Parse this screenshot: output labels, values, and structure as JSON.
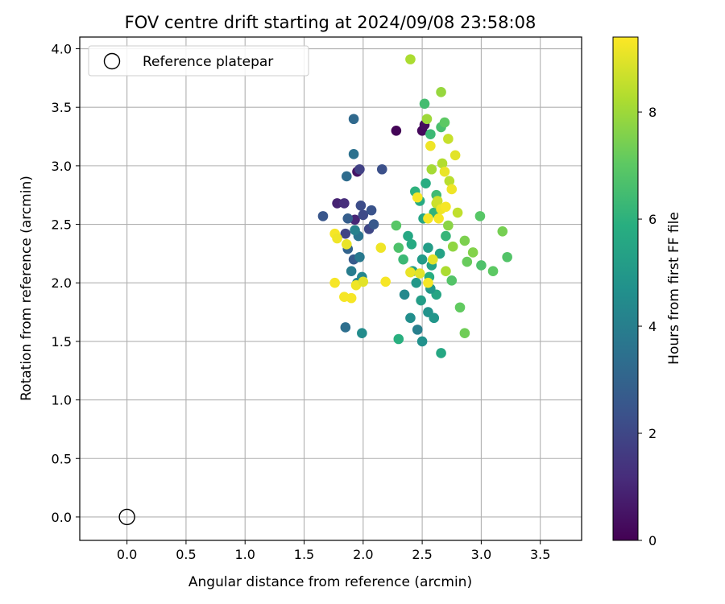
{
  "chart_data": {
    "type": "scatter",
    "title": "FOV centre drift starting at 2024/09/08 23:58:08",
    "xlabel": "Angular distance from reference (arcmin)",
    "ylabel": "Rotation from reference (arcmin)",
    "xlim": [
      -0.4,
      3.85
    ],
    "ylim": [
      -0.2,
      4.1
    ],
    "x_ticks": [
      "0.0",
      "0.5",
      "1.0",
      "1.5",
      "2.0",
      "2.5",
      "3.0",
      "3.5"
    ],
    "y_ticks": [
      "0.0",
      "0.5",
      "1.0",
      "1.5",
      "2.0",
      "2.5",
      "3.0",
      "3.5",
      "4.0"
    ],
    "grid": true,
    "legend": {
      "placement": "top-left",
      "entries": [
        "Reference platepar"
      ]
    },
    "colorbar": {
      "label": "Hours from first FF file",
      "min": 0,
      "max": 9.4,
      "ticks": [
        "0",
        "2",
        "4",
        "6",
        "8"
      ],
      "colormap": "viridis"
    },
    "reference_point": {
      "x": 0.0,
      "y": 0.0
    },
    "points": [
      {
        "x": 2.28,
        "y": 3.3,
        "h": 0.1
      },
      {
        "x": 2.5,
        "y": 3.3,
        "h": 0.2
      },
      {
        "x": 2.52,
        "y": 3.35,
        "h": 0.3
      },
      {
        "x": 1.95,
        "y": 2.95,
        "h": 0.5
      },
      {
        "x": 1.78,
        "y": 2.68,
        "h": 0.9
      },
      {
        "x": 1.84,
        "y": 2.68,
        "h": 1.2
      },
      {
        "x": 1.93,
        "y": 2.54,
        "h": 1.0
      },
      {
        "x": 1.97,
        "y": 2.97,
        "h": 1.8
      },
      {
        "x": 2.16,
        "y": 2.97,
        "h": 2.3
      },
      {
        "x": 1.66,
        "y": 2.57,
        "h": 2.5
      },
      {
        "x": 1.87,
        "y": 2.55,
        "h": 2.8
      },
      {
        "x": 1.98,
        "y": 2.66,
        "h": 2.2
      },
      {
        "x": 2.0,
        "y": 2.58,
        "h": 2.1
      },
      {
        "x": 2.07,
        "y": 2.62,
        "h": 2.4
      },
      {
        "x": 2.05,
        "y": 2.46,
        "h": 2.0
      },
      {
        "x": 1.85,
        "y": 2.42,
        "h": 1.9
      },
      {
        "x": 2.09,
        "y": 2.5,
        "h": 2.6
      },
      {
        "x": 1.92,
        "y": 2.2,
        "h": 2.7
      },
      {
        "x": 1.87,
        "y": 2.29,
        "h": 3.0
      },
      {
        "x": 1.92,
        "y": 3.4,
        "h": 3.2
      },
      {
        "x": 1.92,
        "y": 3.1,
        "h": 3.5
      },
      {
        "x": 1.86,
        "y": 2.91,
        "h": 3.3
      },
      {
        "x": 1.85,
        "y": 1.62,
        "h": 3.4
      },
      {
        "x": 1.97,
        "y": 2.22,
        "h": 3.8
      },
      {
        "x": 1.9,
        "y": 2.1,
        "h": 3.9
      },
      {
        "x": 1.96,
        "y": 2.4,
        "h": 3.6
      },
      {
        "x": 1.93,
        "y": 2.45,
        "h": 4.1
      },
      {
        "x": 1.99,
        "y": 2.05,
        "h": 4.3
      },
      {
        "x": 1.99,
        "y": 1.57,
        "h": 4.5
      },
      {
        "x": 1.95,
        "y": 2.0,
        "h": 4.2
      },
      {
        "x": 2.35,
        "y": 1.9,
        "h": 4.4
      },
      {
        "x": 2.4,
        "y": 1.7,
        "h": 4.6
      },
      {
        "x": 2.46,
        "y": 1.6,
        "h": 4.0
      },
      {
        "x": 2.5,
        "y": 1.5,
        "h": 4.7
      },
      {
        "x": 2.55,
        "y": 1.75,
        "h": 4.8
      },
      {
        "x": 2.6,
        "y": 1.7,
        "h": 4.9
      },
      {
        "x": 2.45,
        "y": 2.0,
        "h": 5.0
      },
      {
        "x": 2.5,
        "y": 2.2,
        "h": 5.1
      },
      {
        "x": 2.55,
        "y": 2.3,
        "h": 5.2
      },
      {
        "x": 2.42,
        "y": 2.1,
        "h": 5.3
      },
      {
        "x": 2.58,
        "y": 2.15,
        "h": 5.4
      },
      {
        "x": 2.62,
        "y": 1.9,
        "h": 5.5
      },
      {
        "x": 2.38,
        "y": 2.4,
        "h": 5.6
      },
      {
        "x": 2.48,
        "y": 2.7,
        "h": 5.7
      },
      {
        "x": 2.53,
        "y": 2.85,
        "h": 5.8
      },
      {
        "x": 2.3,
        "y": 1.52,
        "h": 5.9
      },
      {
        "x": 2.66,
        "y": 1.4,
        "h": 5.6
      },
      {
        "x": 2.51,
        "y": 2.55,
        "h": 5.5
      },
      {
        "x": 2.44,
        "y": 2.78,
        "h": 6.0
      },
      {
        "x": 2.6,
        "y": 2.6,
        "h": 6.1
      },
      {
        "x": 2.7,
        "y": 2.4,
        "h": 6.2
      },
      {
        "x": 2.34,
        "y": 2.2,
        "h": 6.3
      },
      {
        "x": 2.56,
        "y": 2.05,
        "h": 5.8
      },
      {
        "x": 2.65,
        "y": 2.25,
        "h": 5.4
      },
      {
        "x": 2.49,
        "y": 1.85,
        "h": 5.2
      },
      {
        "x": 2.57,
        "y": 1.95,
        "h": 5.0
      },
      {
        "x": 2.41,
        "y": 2.33,
        "h": 5.7
      },
      {
        "x": 2.62,
        "y": 2.75,
        "h": 6.4
      },
      {
        "x": 2.52,
        "y": 3.53,
        "h": 6.5
      },
      {
        "x": 2.66,
        "y": 3.33,
        "h": 6.6
      },
      {
        "x": 2.57,
        "y": 3.27,
        "h": 6.3
      },
      {
        "x": 2.3,
        "y": 2.3,
        "h": 6.7
      },
      {
        "x": 2.28,
        "y": 2.49,
        "h": 6.9
      },
      {
        "x": 2.69,
        "y": 3.37,
        "h": 7.0
      },
      {
        "x": 2.75,
        "y": 2.02,
        "h": 6.8
      },
      {
        "x": 2.82,
        "y": 1.79,
        "h": 7.1
      },
      {
        "x": 2.86,
        "y": 1.57,
        "h": 7.3
      },
      {
        "x": 2.88,
        "y": 2.18,
        "h": 7.2
      },
      {
        "x": 2.99,
        "y": 2.57,
        "h": 6.9
      },
      {
        "x": 3.0,
        "y": 2.15,
        "h": 6.7
      },
      {
        "x": 3.1,
        "y": 2.1,
        "h": 7.0
      },
      {
        "x": 3.18,
        "y": 2.44,
        "h": 7.4
      },
      {
        "x": 3.22,
        "y": 2.22,
        "h": 6.8
      },
      {
        "x": 2.86,
        "y": 2.36,
        "h": 7.5
      },
      {
        "x": 2.93,
        "y": 2.26,
        "h": 7.6
      },
      {
        "x": 2.72,
        "y": 2.49,
        "h": 7.7
      },
      {
        "x": 2.76,
        "y": 2.31,
        "h": 7.8
      },
      {
        "x": 2.66,
        "y": 3.63,
        "h": 7.9
      },
      {
        "x": 2.54,
        "y": 3.4,
        "h": 8.0
      },
      {
        "x": 2.4,
        "y": 3.91,
        "h": 8.2
      },
      {
        "x": 2.58,
        "y": 2.97,
        "h": 8.1
      },
      {
        "x": 2.67,
        "y": 3.02,
        "h": 8.3
      },
      {
        "x": 2.73,
        "y": 2.87,
        "h": 8.4
      },
      {
        "x": 2.8,
        "y": 2.6,
        "h": 8.5
      },
      {
        "x": 2.62,
        "y": 2.68,
        "h": 8.6
      },
      {
        "x": 2.7,
        "y": 2.1,
        "h": 8.2
      },
      {
        "x": 2.63,
        "y": 2.7,
        "h": 8.7
      },
      {
        "x": 2.72,
        "y": 3.23,
        "h": 8.6
      },
      {
        "x": 2.78,
        "y": 3.09,
        "h": 9.0
      },
      {
        "x": 2.69,
        "y": 2.95,
        "h": 9.1
      },
      {
        "x": 2.75,
        "y": 2.8,
        "h": 9.2
      },
      {
        "x": 2.59,
        "y": 2.2,
        "h": 9.0
      },
      {
        "x": 2.64,
        "y": 2.55,
        "h": 9.3
      },
      {
        "x": 2.57,
        "y": 3.17,
        "h": 9.2
      },
      {
        "x": 2.46,
        "y": 2.73,
        "h": 9.3
      },
      {
        "x": 2.4,
        "y": 2.09,
        "h": 9.1
      },
      {
        "x": 2.48,
        "y": 2.08,
        "h": 9.0
      },
      {
        "x": 2.55,
        "y": 2.0,
        "h": 9.3
      },
      {
        "x": 2.66,
        "y": 2.63,
        "h": 9.2
      },
      {
        "x": 2.7,
        "y": 2.65,
        "h": 9.3
      },
      {
        "x": 2.55,
        "y": 2.55,
        "h": 9.3
      },
      {
        "x": 2.15,
        "y": 2.3,
        "h": 9.2
      },
      {
        "x": 2.19,
        "y": 2.01,
        "h": 9.3
      },
      {
        "x": 1.76,
        "y": 2.42,
        "h": 9.3
      },
      {
        "x": 1.78,
        "y": 2.38,
        "h": 9.2
      },
      {
        "x": 1.86,
        "y": 2.33,
        "h": 9.1
      },
      {
        "x": 1.76,
        "y": 2.0,
        "h": 9.3
      },
      {
        "x": 1.94,
        "y": 1.98,
        "h": 9.2
      },
      {
        "x": 1.84,
        "y": 1.88,
        "h": 9.3
      },
      {
        "x": 1.9,
        "y": 1.87,
        "h": 9.3
      },
      {
        "x": 2.0,
        "y": 2.01,
        "h": 9.0
      }
    ]
  }
}
